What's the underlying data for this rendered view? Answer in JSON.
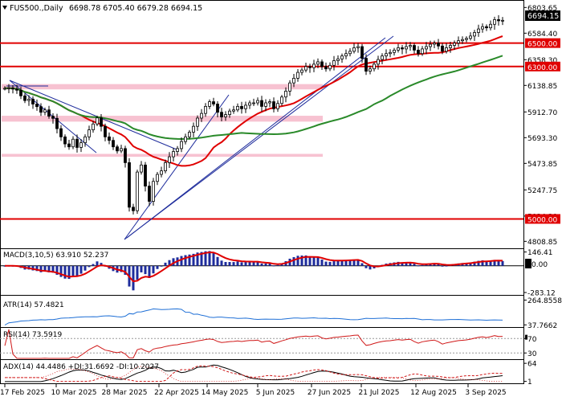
{
  "header": {
    "symbol": "FUS500.,Daily",
    "ohlc": "6698.78 6705.40 6679.28 6694.15"
  },
  "colors": {
    "price_line": "#e00000",
    "ma_fast": "#e00000",
    "ma_slow": "#2a8a2a",
    "trend": "#1e2c9c",
    "zone": "#f6b7c9",
    "bull": "#000000",
    "bear": "#000000",
    "macd_hist": "#1e2c9c",
    "macd_signal": "#e00000",
    "atr": "#1e6fd6",
    "rsi": "#d01818",
    "adx": "#000000",
    "di": "#d01818"
  },
  "chart_data": [
    {
      "type": "candlestick",
      "title": "FUS500.,Daily",
      "ohlc_last": {
        "open": 6698.78,
        "high": 6705.4,
        "low": 6679.28,
        "close": 6694.15
      },
      "x_tick_labels": [
        "17 Feb 2025",
        "10 Mar 2025",
        "28 Mar 2025",
        "22 Apr 2025",
        "14 May 2025",
        "5 Jun 2025",
        "27 Jun 2025",
        "21 Jul 2025",
        "12 Aug 2025",
        "3 Sep 2025"
      ],
      "y_tick_labels": [
        "6803.65",
        "6584.40",
        "6358.30",
        "6138.85",
        "5912.70",
        "5693.30",
        "5473.85",
        "5247.75",
        "5024.30",
        "4808.85"
      ],
      "ylim": [
        4770,
        6840
      ],
      "price_label": "6694.15",
      "horizontal_levels": [
        {
          "label": "6500.00",
          "value": 6500
        },
        {
          "label": "6300.00",
          "value": 6300
        },
        {
          "label": "5000.00",
          "value": 5000
        }
      ],
      "resistance_zones": [
        {
          "from": 6105,
          "to": 6150
        },
        {
          "from": 5830,
          "to": 5880
        },
        {
          "from": 5530,
          "to": 5555
        }
      ],
      "closes": [
        6114,
        6118,
        6108,
        6098,
        6050,
        6010,
        6022,
        5980,
        5958,
        5910,
        5930,
        5876,
        5858,
        5770,
        5700,
        5640,
        5615,
        5680,
        5610,
        5650,
        5700,
        5760,
        5810,
        5862,
        5790,
        5700,
        5670,
        5615,
        5580,
        5600,
        5480,
        5100,
        5070,
        5400,
        5460,
        5280,
        5150,
        5320,
        5380,
        5410,
        5480,
        5530,
        5575,
        5600,
        5660,
        5700,
        5740,
        5790,
        5860,
        5900,
        5960,
        6000,
        5980,
        5910,
        5870,
        5890,
        5920,
        5930,
        5960,
        5940,
        5970,
        5990,
        5990,
        6010,
        5960,
        5990,
        6000,
        5940,
        5985,
        6040,
        6090,
        6160,
        6200,
        6250,
        6270,
        6300,
        6290,
        6320,
        6340,
        6300,
        6280,
        6310,
        6350,
        6365,
        6390,
        6410,
        6430,
        6460,
        6470,
        6370,
        6260,
        6280,
        6320,
        6360,
        6390,
        6410,
        6420,
        6440,
        6460,
        6450,
        6470,
        6480,
        6440,
        6410,
        6450,
        6470,
        6490,
        6500,
        6475,
        6430,
        6460,
        6480,
        6500,
        6520,
        6530,
        6540,
        6560,
        6590,
        6620,
        6640,
        6630,
        6660,
        6700,
        6690,
        6694
      ]
    },
    {
      "type": "bar",
      "title": "MACD(3,10,5) 63.910 52.237",
      "y_tick_labels": [
        "146.41",
        "0.00",
        "-283.12"
      ],
      "ylim": [
        -300,
        160
      ],
      "value_label": "0.00",
      "macd": 63.91,
      "signal": 52.237
    },
    {
      "type": "line",
      "title": "ATR(14) 57.4821",
      "y_tick_labels": [
        "264.8558",
        "37.7662"
      ],
      "ylim": [
        25,
        290
      ],
      "value": 57.4821
    },
    {
      "type": "line",
      "title": "RSI(14) 73.5919",
      "y_tick_labels": [
        "70",
        "30"
      ],
      "ylim": [
        15,
        95
      ],
      "value": 73.5919
    },
    {
      "type": "line",
      "title": "ADX(14) 44.4486 +DI:31.6692 -DI:10.2027",
      "y_tick_labels": [
        "64",
        "1"
      ],
      "ylim": [
        -3,
        70
      ],
      "adx": 44.4486,
      "plus_di": 31.6692,
      "minus_di": 10.2027
    }
  ]
}
